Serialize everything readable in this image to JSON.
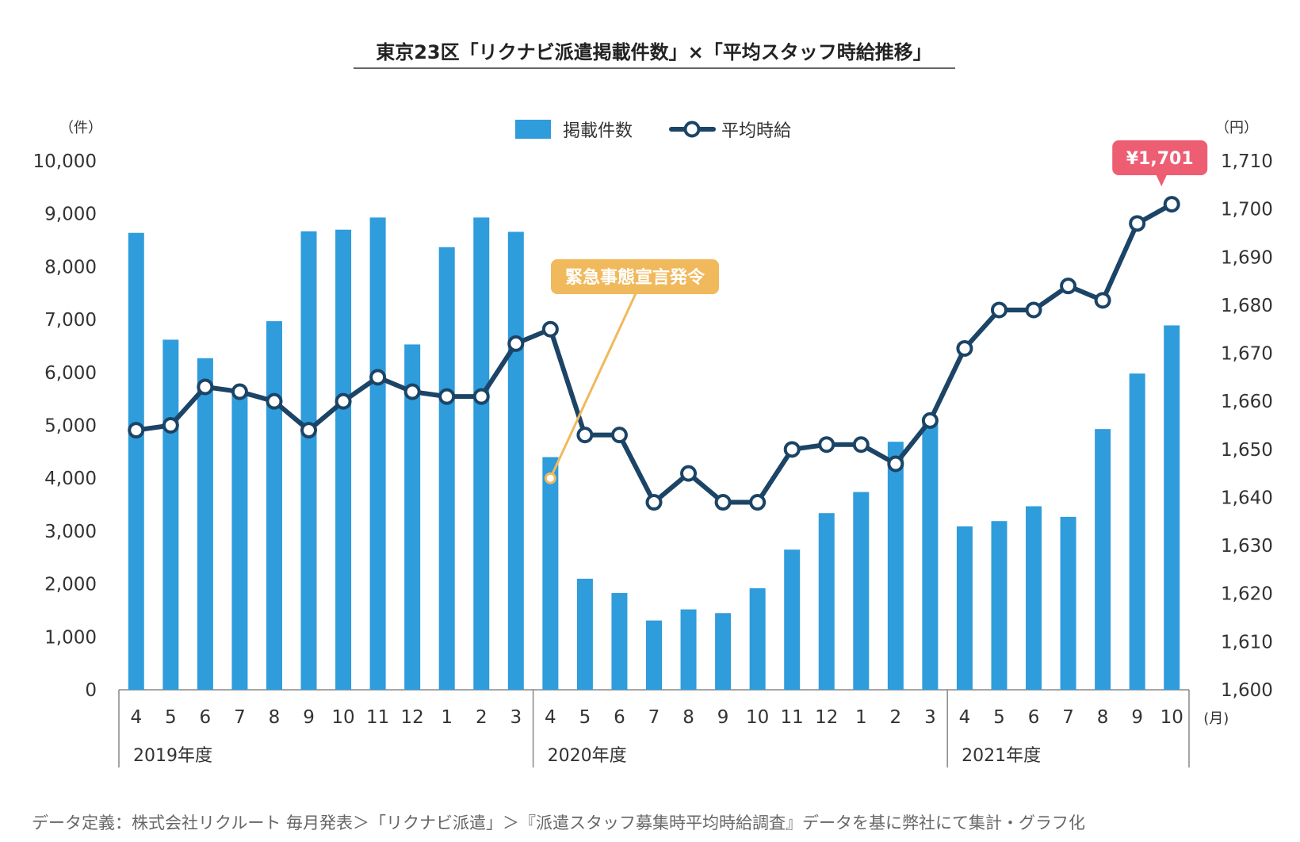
{
  "title": "東京23区「リクナビ派遣掲載件数」×「平均スタッフ時給推移」",
  "source": "データ定義：株式会社リクルート 毎月発表＞「リクナビ派遣」＞『派遣スタッフ募集時平均時給調査』データを基に弊社にて集計・グラフ化",
  "colors": {
    "bar": "#2f9cdb",
    "line": "#1b4466",
    "emergency": "#f0b95c",
    "peak": "#ee5e73",
    "axis": "#888888"
  },
  "chart_data": {
    "type": "bar+line",
    "categories": [
      "4",
      "5",
      "6",
      "7",
      "8",
      "9",
      "10",
      "11",
      "12",
      "1",
      "2",
      "3",
      "4",
      "5",
      "6",
      "7",
      "8",
      "9",
      "10",
      "11",
      "12",
      "1",
      "2",
      "3",
      "4",
      "5",
      "6",
      "7",
      "8",
      "9",
      "10"
    ],
    "month_unit": "(月)",
    "fiscal_years": [
      {
        "label": "2019年度",
        "start": 0,
        "end": 11
      },
      {
        "label": "2020年度",
        "start": 12,
        "end": 23
      },
      {
        "label": "2021年度",
        "start": 24,
        "end": 30
      }
    ],
    "series": [
      {
        "name": "掲載件数",
        "type": "bar",
        "axis": "left",
        "values": [
          8640,
          6620,
          6270,
          5610,
          6970,
          8670,
          8700,
          8930,
          6530,
          8370,
          8930,
          8660,
          4400,
          2100,
          1830,
          1310,
          1520,
          1450,
          1920,
          2650,
          3340,
          3740,
          4690,
          5070,
          3090,
          3190,
          3470,
          3270,
          4930,
          5980,
          6890
        ]
      },
      {
        "name": "平均時給",
        "type": "line",
        "axis": "right",
        "values": [
          1654,
          1655,
          1663,
          1662,
          1660,
          1654,
          1660,
          1665,
          1662,
          1661,
          1661,
          1672,
          1675,
          1653,
          1653,
          1639,
          1645,
          1639,
          1639,
          1650,
          1651,
          1651,
          1647,
          1656,
          1671,
          1679,
          1679,
          1684,
          1681,
          1697,
          1701
        ]
      }
    ],
    "left_axis": {
      "unit": "（件）",
      "min": 0,
      "max": 10000,
      "ticks": [
        "0",
        "1,000",
        "2,000",
        "3,000",
        "4,000",
        "5,000",
        "6,000",
        "7,000",
        "8,000",
        "9,000",
        "10,000"
      ]
    },
    "right_axis": {
      "unit": "（円）",
      "min": 1600,
      "max": 1710,
      "ticks": [
        "1,600",
        "1,610",
        "1,620",
        "1,630",
        "1,640",
        "1,650",
        "1,660",
        "1,670",
        "1,680",
        "1,690",
        "1,700",
        "1,710"
      ]
    },
    "annotations": [
      {
        "text": "緊急事態宣言発令",
        "index": 12
      },
      {
        "text": "¥1,701",
        "index": 30
      }
    ],
    "legend": "top-center",
    "grid": false
  }
}
